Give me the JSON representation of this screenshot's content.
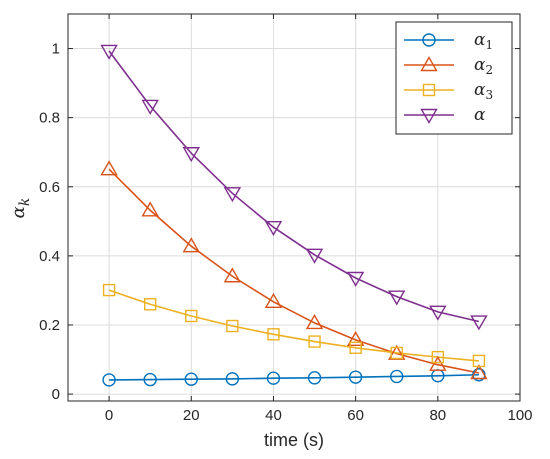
{
  "chart_data": {
    "type": "line",
    "title": "",
    "xlabel": "time (s)",
    "ylabel": "α_k",
    "ylabel_main": "α",
    "ylabel_sub": "k",
    "xlim": [
      -10,
      100
    ],
    "ylim": [
      -0.02,
      1.1
    ],
    "xticks": [
      0,
      20,
      40,
      60,
      80,
      100
    ],
    "xtick_labels": [
      "0",
      "20",
      "40",
      "60",
      "80",
      "100"
    ],
    "yticks": [
      0,
      0.2,
      0.4,
      0.6,
      0.8,
      1
    ],
    "ytick_labels": [
      "0",
      "0.2",
      "0.4",
      "0.6",
      "0.8",
      "1"
    ],
    "grid": true,
    "legend_position": "top-right",
    "x": [
      0,
      10,
      20,
      30,
      40,
      50,
      60,
      70,
      80,
      90
    ],
    "series": [
      {
        "name": "α1",
        "name_main": "α",
        "name_sub": "1",
        "color": "#0072BD",
        "marker": "circle",
        "values": [
          0.041,
          0.042,
          0.043,
          0.044,
          0.046,
          0.047,
          0.049,
          0.051,
          0.053,
          0.056
        ]
      },
      {
        "name": "α2",
        "name_main": "α",
        "name_sub": "2",
        "color": "#D95319",
        "marker": "triangle-up",
        "values": [
          0.651,
          0.532,
          0.428,
          0.341,
          0.267,
          0.206,
          0.157,
          0.117,
          0.085,
          0.061
        ]
      },
      {
        "name": "α3",
        "name_main": "α",
        "name_sub": "3",
        "color": "#EDB120",
        "marker": "square",
        "values": [
          0.301,
          0.26,
          0.226,
          0.197,
          0.173,
          0.152,
          0.134,
          0.119,
          0.107,
          0.096
        ]
      },
      {
        "name": "α",
        "name_main": "α",
        "name_sub": "",
        "color": "#7E2F8E",
        "marker": "triangle-down",
        "values": [
          0.993,
          0.834,
          0.697,
          0.581,
          0.483,
          0.403,
          0.336,
          0.282,
          0.238,
          0.21
        ]
      }
    ]
  }
}
